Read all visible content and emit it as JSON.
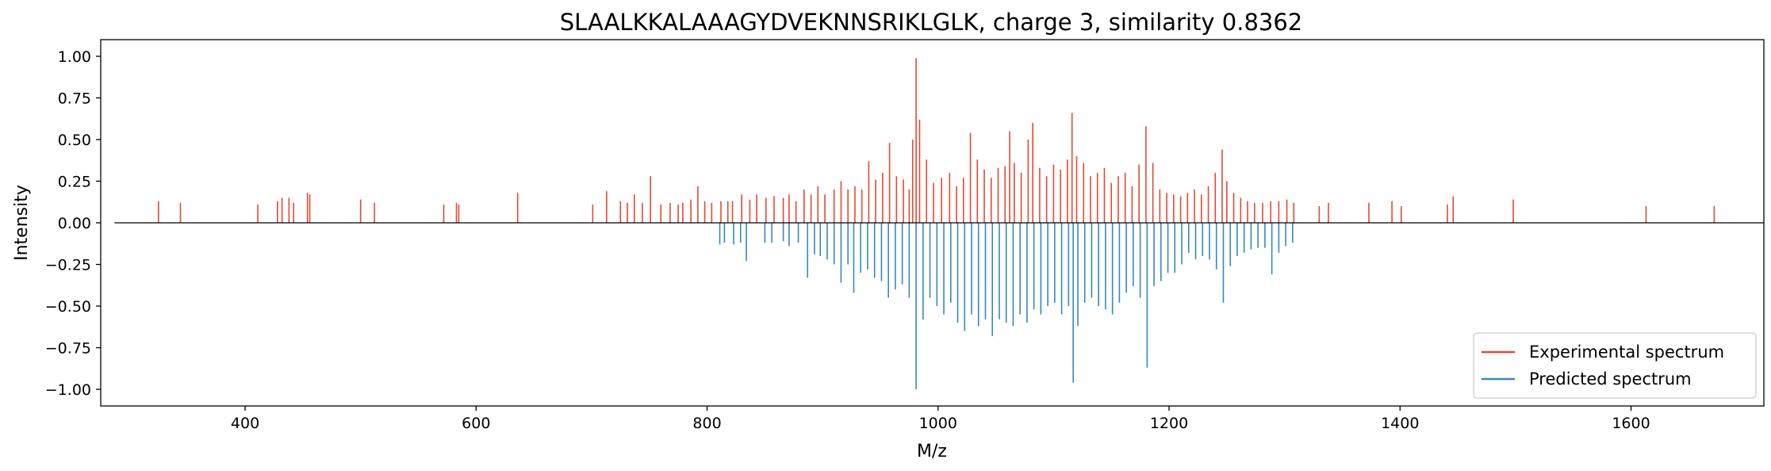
{
  "chart_data": {
    "type": "bar",
    "title": "SLAALKKALAAAGYDVEKNNSRIKLGLK, charge 3, similarity 0.8362",
    "xlabel": "M/z",
    "ylabel": "Intensity",
    "xlim": [
      275,
      1715
    ],
    "ylim": [
      -1.1,
      1.1
    ],
    "xticks": [
      400,
      600,
      800,
      1000,
      1200,
      1400,
      1600
    ],
    "xtick_labels": [
      "400",
      "600",
      "800",
      "1000",
      "1200",
      "1400",
      "1600"
    ],
    "yticks": [
      1.0,
      0.75,
      0.5,
      0.25,
      0.0,
      -0.25,
      -0.5,
      -0.75,
      -1.0
    ],
    "ytick_labels": [
      "1.00",
      "0.75",
      "0.50",
      "0.25",
      "0.00",
      "−0.25",
      "−0.50",
      "−0.75",
      "−1.00"
    ],
    "baseline": {
      "from": 287,
      "to": 1715,
      "y": 0
    },
    "grid": false,
    "legend_position": "lower right",
    "series": [
      {
        "name": "Experimental spectrum",
        "color": "#e24a33",
        "peaks": [
          [
            325,
            0.13
          ],
          [
            344,
            0.12
          ],
          [
            411,
            0.11
          ],
          [
            428,
            0.13
          ],
          [
            432,
            0.15
          ],
          [
            438,
            0.15
          ],
          [
            442,
            0.12
          ],
          [
            454,
            0.18
          ],
          [
            456,
            0.17
          ],
          [
            500,
            0.14
          ],
          [
            512,
            0.12
          ],
          [
            572,
            0.11
          ],
          [
            583,
            0.12
          ],
          [
            585,
            0.11
          ],
          [
            636,
            0.18
          ],
          [
            701,
            0.11
          ],
          [
            713,
            0.19
          ],
          [
            725,
            0.13
          ],
          [
            731,
            0.12
          ],
          [
            737,
            0.17
          ],
          [
            744,
            0.12
          ],
          [
            751,
            0.28
          ],
          [
            760,
            0.11
          ],
          [
            768,
            0.12
          ],
          [
            775,
            0.11
          ],
          [
            779,
            0.12
          ],
          [
            786,
            0.14
          ],
          [
            792,
            0.22
          ],
          [
            798,
            0.13
          ],
          [
            804,
            0.12
          ],
          [
            812,
            0.13
          ],
          [
            818,
            0.13
          ],
          [
            822,
            0.13
          ],
          [
            830,
            0.17
          ],
          [
            837,
            0.14
          ],
          [
            843,
            0.17
          ],
          [
            851,
            0.15
          ],
          [
            858,
            0.16
          ],
          [
            866,
            0.15
          ],
          [
            871,
            0.17
          ],
          [
            877,
            0.13
          ],
          [
            884,
            0.2
          ],
          [
            890,
            0.17
          ],
          [
            896,
            0.22
          ],
          [
            902,
            0.17
          ],
          [
            910,
            0.2
          ],
          [
            916,
            0.25
          ],
          [
            922,
            0.2
          ],
          [
            928,
            0.22
          ],
          [
            934,
            0.2
          ],
          [
            940,
            0.37
          ],
          [
            946,
            0.26
          ],
          [
            952,
            0.3
          ],
          [
            958,
            0.48
          ],
          [
            964,
            0.28
          ],
          [
            970,
            0.26
          ],
          [
            975,
            0.2
          ],
          [
            978,
            0.5
          ],
          [
            981,
            0.99
          ],
          [
            984,
            0.62
          ],
          [
            990,
            0.38
          ],
          [
            996,
            0.24
          ],
          [
            1003,
            0.27
          ],
          [
            1010,
            0.3
          ],
          [
            1016,
            0.22
          ],
          [
            1022,
            0.27
          ],
          [
            1028,
            0.54
          ],
          [
            1034,
            0.38
          ],
          [
            1040,
            0.32
          ],
          [
            1046,
            0.27
          ],
          [
            1052,
            0.33
          ],
          [
            1058,
            0.34
          ],
          [
            1062,
            0.55
          ],
          [
            1066,
            0.36
          ],
          [
            1072,
            0.3
          ],
          [
            1078,
            0.5
          ],
          [
            1082,
            0.6
          ],
          [
            1088,
            0.33
          ],
          [
            1094,
            0.28
          ],
          [
            1100,
            0.35
          ],
          [
            1106,
            0.32
          ],
          [
            1112,
            0.38
          ],
          [
            1116,
            0.66
          ],
          [
            1120,
            0.4
          ],
          [
            1126,
            0.36
          ],
          [
            1132,
            0.28
          ],
          [
            1138,
            0.3
          ],
          [
            1144,
            0.33
          ],
          [
            1150,
            0.24
          ],
          [
            1156,
            0.28
          ],
          [
            1162,
            0.3
          ],
          [
            1168,
            0.22
          ],
          [
            1174,
            0.35
          ],
          [
            1180,
            0.58
          ],
          [
            1186,
            0.36
          ],
          [
            1192,
            0.2
          ],
          [
            1198,
            0.18
          ],
          [
            1204,
            0.17
          ],
          [
            1210,
            0.16
          ],
          [
            1216,
            0.18
          ],
          [
            1222,
            0.2
          ],
          [
            1228,
            0.17
          ],
          [
            1234,
            0.22
          ],
          [
            1240,
            0.3
          ],
          [
            1246,
            0.44
          ],
          [
            1250,
            0.25
          ],
          [
            1256,
            0.18
          ],
          [
            1262,
            0.15
          ],
          [
            1268,
            0.13
          ],
          [
            1274,
            0.12
          ],
          [
            1281,
            0.12
          ],
          [
            1288,
            0.13
          ],
          [
            1295,
            0.13
          ],
          [
            1302,
            0.14
          ],
          [
            1308,
            0.12
          ],
          [
            1330,
            0.1
          ],
          [
            1338,
            0.12
          ],
          [
            1373,
            0.12
          ],
          [
            1393,
            0.13
          ],
          [
            1401,
            0.1
          ],
          [
            1441,
            0.11
          ],
          [
            1446,
            0.16
          ],
          [
            1498,
            0.14
          ],
          [
            1613,
            0.1
          ],
          [
            1672,
            0.1
          ]
        ]
      },
      {
        "name": "Predicted spectrum",
        "color": "#348abd",
        "peaks": [
          [
            811,
            -0.13
          ],
          [
            815,
            -0.12
          ],
          [
            823,
            -0.13
          ],
          [
            829,
            -0.12
          ],
          [
            834,
            -0.23
          ],
          [
            850,
            -0.12
          ],
          [
            856,
            -0.12
          ],
          [
            866,
            -0.11
          ],
          [
            871,
            -0.14
          ],
          [
            879,
            -0.12
          ],
          [
            887,
            -0.33
          ],
          [
            893,
            -0.19
          ],
          [
            898,
            -0.2
          ],
          [
            904,
            -0.22
          ],
          [
            910,
            -0.25
          ],
          [
            916,
            -0.36
          ],
          [
            922,
            -0.25
          ],
          [
            927,
            -0.42
          ],
          [
            933,
            -0.3
          ],
          [
            939,
            -0.28
          ],
          [
            945,
            -0.33
          ],
          [
            951,
            -0.35
          ],
          [
            957,
            -0.45
          ],
          [
            963,
            -0.4
          ],
          [
            969,
            -0.37
          ],
          [
            975,
            -0.45
          ],
          [
            981,
            -1.0
          ],
          [
            987,
            -0.58
          ],
          [
            993,
            -0.45
          ],
          [
            999,
            -0.5
          ],
          [
            1005,
            -0.55
          ],
          [
            1011,
            -0.48
          ],
          [
            1017,
            -0.6
          ],
          [
            1023,
            -0.65
          ],
          [
            1029,
            -0.55
          ],
          [
            1035,
            -0.62
          ],
          [
            1041,
            -0.58
          ],
          [
            1047,
            -0.68
          ],
          [
            1053,
            -0.58
          ],
          [
            1059,
            -0.6
          ],
          [
            1065,
            -0.62
          ],
          [
            1071,
            -0.55
          ],
          [
            1077,
            -0.6
          ],
          [
            1083,
            -0.52
          ],
          [
            1089,
            -0.55
          ],
          [
            1095,
            -0.5
          ],
          [
            1101,
            -0.48
          ],
          [
            1107,
            -0.55
          ],
          [
            1113,
            -0.5
          ],
          [
            1117,
            -0.96
          ],
          [
            1121,
            -0.62
          ],
          [
            1127,
            -0.48
          ],
          [
            1133,
            -0.45
          ],
          [
            1139,
            -0.5
          ],
          [
            1145,
            -0.52
          ],
          [
            1151,
            -0.55
          ],
          [
            1157,
            -0.48
          ],
          [
            1163,
            -0.42
          ],
          [
            1169,
            -0.38
          ],
          [
            1175,
            -0.45
          ],
          [
            1181,
            -0.87
          ],
          [
            1187,
            -0.38
          ],
          [
            1193,
            -0.35
          ],
          [
            1199,
            -0.3
          ],
          [
            1205,
            -0.3
          ],
          [
            1211,
            -0.25
          ],
          [
            1217,
            -0.18
          ],
          [
            1223,
            -0.22
          ],
          [
            1229,
            -0.2
          ],
          [
            1235,
            -0.22
          ],
          [
            1241,
            -0.28
          ],
          [
            1247,
            -0.48
          ],
          [
            1253,
            -0.26
          ],
          [
            1259,
            -0.2
          ],
          [
            1265,
            -0.18
          ],
          [
            1271,
            -0.16
          ],
          [
            1277,
            -0.15
          ],
          [
            1283,
            -0.15
          ],
          [
            1289,
            -0.31
          ],
          [
            1295,
            -0.18
          ],
          [
            1301,
            -0.14
          ],
          [
            1307,
            -0.12
          ]
        ]
      }
    ]
  },
  "legend": {
    "items": [
      {
        "label": "Experimental spectrum",
        "color": "#e24a33"
      },
      {
        "label": "Predicted spectrum",
        "color": "#348abd"
      }
    ]
  }
}
